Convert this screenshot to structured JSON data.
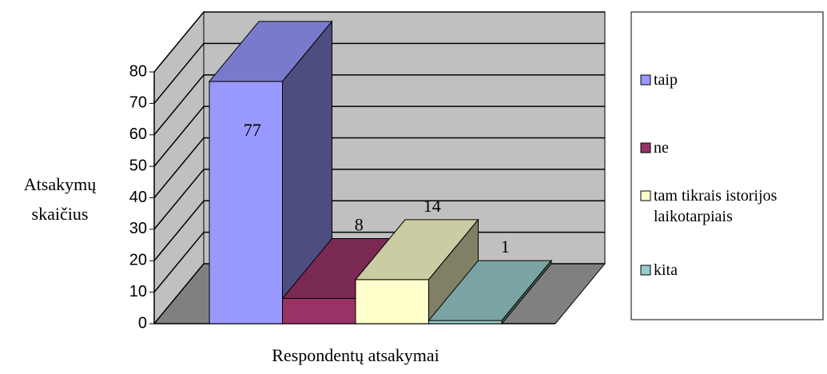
{
  "chart_data": {
    "type": "bar3d",
    "xlabel": "Respondentų atsakymai",
    "ylabel": "Atsakymų skaičius",
    "categories": [
      null
    ],
    "series": [
      {
        "name": "taip",
        "color": "#9999ff",
        "values": [
          77
        ]
      },
      {
        "name": "ne",
        "color": "#993366",
        "values": [
          8
        ]
      },
      {
        "name": "tam tikrais istorijos laikotarpiais",
        "color": "#ffffcc",
        "values": [
          14
        ]
      },
      {
        "name": "kita",
        "color": "#99cccc",
        "values": [
          1
        ]
      }
    ],
    "ylim": [
      0,
      80
    ],
    "yticks": [
      0,
      10,
      20,
      30,
      40,
      50,
      60,
      70,
      80
    ],
    "grid": true,
    "legend": "right"
  }
}
